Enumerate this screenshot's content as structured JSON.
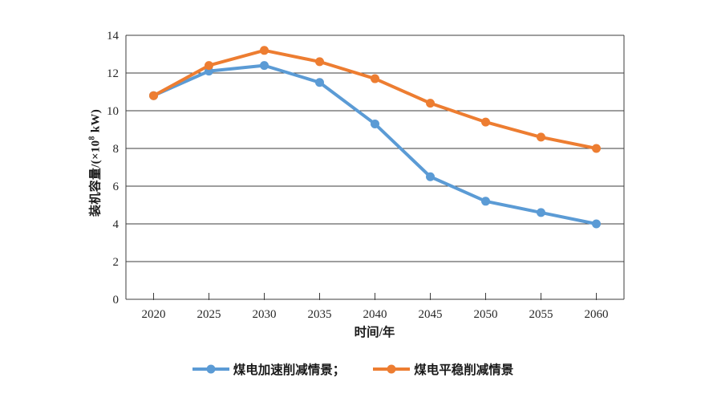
{
  "chart_data": {
    "type": "line",
    "xlabel": "时间/年",
    "ylabel_parts": {
      "prefix": "装机容量/(×10",
      "sup": "8",
      "suffix": " kW)"
    },
    "categories": [
      "2020",
      "2025",
      "2030",
      "2035",
      "2040",
      "2045",
      "2050",
      "2055",
      "2060"
    ],
    "y_ticks": [
      0,
      2,
      4,
      6,
      8,
      10,
      12,
      14
    ],
    "ylim": [
      0,
      14
    ],
    "grid": true,
    "legend_position": "bottom",
    "series": [
      {
        "name": "煤电加速削减情景",
        "legend_label": "煤电加速削减情景；",
        "color": "#5B9BD5",
        "values": [
          10.8,
          12.1,
          12.4,
          11.5,
          9.3,
          6.5,
          5.2,
          4.6,
          4.0
        ]
      },
      {
        "name": "煤电平稳削减情景",
        "legend_label": "煤电平稳削减情景",
        "color": "#ED7D31",
        "values": [
          10.8,
          12.4,
          13.2,
          12.6,
          11.7,
          10.4,
          9.4,
          8.6,
          8.0
        ]
      }
    ],
    "colors": {
      "gridline": "#3d3d3d",
      "axis": "#3d3d3d",
      "text": "#262626"
    }
  }
}
